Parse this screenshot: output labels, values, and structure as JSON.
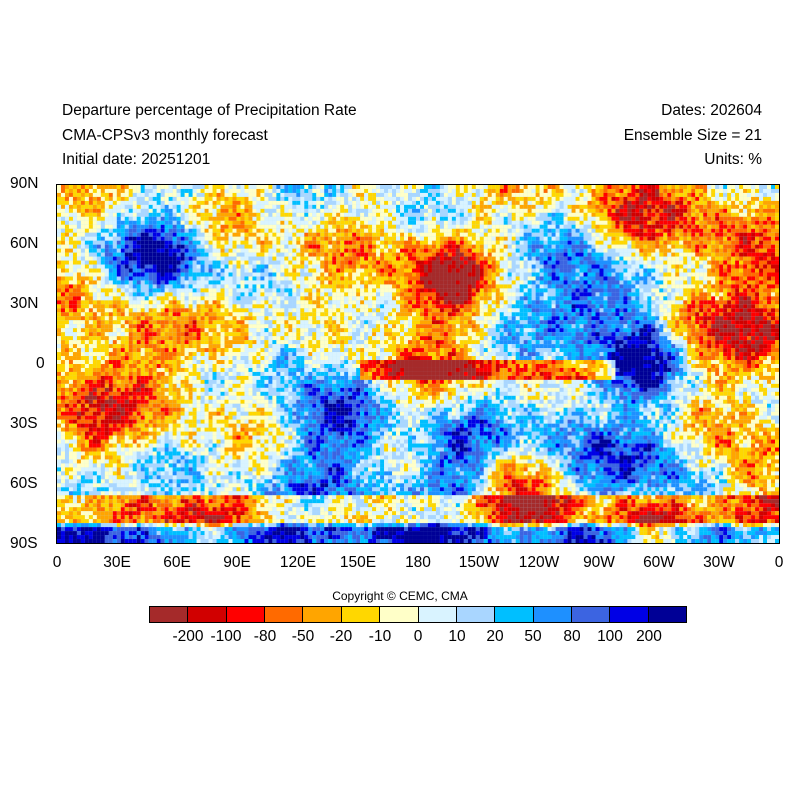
{
  "header": {
    "title": "Departure percentage of Precipitation Rate",
    "model": "CMA-CPSv3 monthly forecast",
    "initial": "Initial date: 20251201",
    "dates": "Dates: 202604",
    "ensemble": "Ensemble Size = 21",
    "units": "Units: %"
  },
  "map": {
    "lat_labels": [
      "90N",
      "60N",
      "30N",
      "0",
      "30S",
      "60S",
      "90S"
    ],
    "lon_labels": [
      "0",
      "30E",
      "60E",
      "90E",
      "120E",
      "150E",
      "180",
      "150W",
      "120W",
      "90W",
      "60W",
      "30W",
      "0"
    ]
  },
  "copyright": "Copyright © CEMC, CMA",
  "legend": {
    "labels": [
      "-200",
      "-100",
      "-80",
      "-50",
      "-20",
      "-10",
      "0",
      "10",
      "20",
      "50",
      "80",
      "100",
      "200"
    ],
    "colors": [
      "#a52a2a",
      "#d10000",
      "#ff0000",
      "#ff6a00",
      "#ffa500",
      "#ffd700",
      "#ffffc8",
      "#d9f3ff",
      "#a9d6ff",
      "#00bfff",
      "#1e90ff",
      "#3c64e1",
      "#0000e6",
      "#000096"
    ]
  }
}
